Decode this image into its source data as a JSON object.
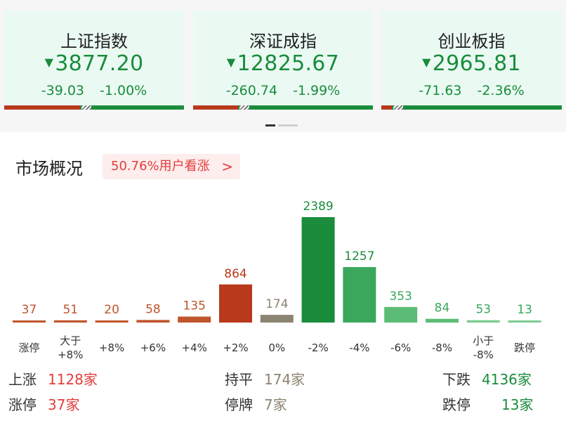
{
  "indices": [
    {
      "name": "上证指数",
      "arrow": "▼",
      "value": "3877.20",
      "change": "-39.03",
      "pct": "-1.00%",
      "up_frac": 0.42,
      "flat_frac": 0.03
    },
    {
      "name": "深证成指",
      "arrow": "▼",
      "value": "12825.67",
      "change": "-260.74",
      "pct": "-1.99%",
      "up_frac": 0.25,
      "flat_frac": 0.03
    },
    {
      "name": "创业板指",
      "arrow": "▼",
      "value": "2965.81",
      "change": "-71.63",
      "pct": "-2.36%",
      "up_frac": 0.06,
      "flat_frac": 0.03
    }
  ],
  "market": {
    "title": "市场概况",
    "sentiment": "50.76%用户看涨",
    "sentiment_chevron": ">"
  },
  "chart_data": {
    "type": "bar",
    "categories": [
      "涨停",
      "大于\n+8%",
      "+8%",
      "+6%",
      "+4%",
      "+2%",
      "0%",
      "-2%",
      "-4%",
      "-6%",
      "-8%",
      "小于\n-8%",
      "跌停"
    ],
    "values": [
      37,
      51,
      20,
      58,
      135,
      864,
      174,
      2389,
      1257,
      353,
      84,
      53,
      13
    ],
    "colors": [
      "#c0552c",
      "#c0552c",
      "#c0552c",
      "#c0552c",
      "#c0552c",
      "#b8391c",
      "#8c8472",
      "#1a8c3c",
      "#3aa75c",
      "#5cbc77",
      "#5cbc77",
      "#7ccc90",
      "#7ccc90"
    ],
    "label_colors": [
      "#c0552c",
      "#c0552c",
      "#c0552c",
      "#c0552c",
      "#c0552c",
      "#b8391c",
      "#8c8472",
      "#1a8c3c",
      "#1a8c3c",
      "#3aa75c",
      "#3aa75c",
      "#3aa75c",
      "#3aa75c"
    ],
    "min_bar_height": 3
  },
  "summary": {
    "up_label": "上涨",
    "up_value": "1128家",
    "limit_up_label": "涨停",
    "limit_up_value": "37家",
    "flat_label": "持平",
    "flat_value": "174家",
    "suspended_label": "停牌",
    "suspended_value": "7家",
    "down_label": "下跌",
    "down_value": "4136家",
    "limit_down_label": "跌停",
    "limit_down_value": "13家"
  },
  "colors": {
    "up": "#e53c3c",
    "down": "#1a8c3c",
    "flat": "#8c8472",
    "card_bg": "#eafaf3"
  }
}
